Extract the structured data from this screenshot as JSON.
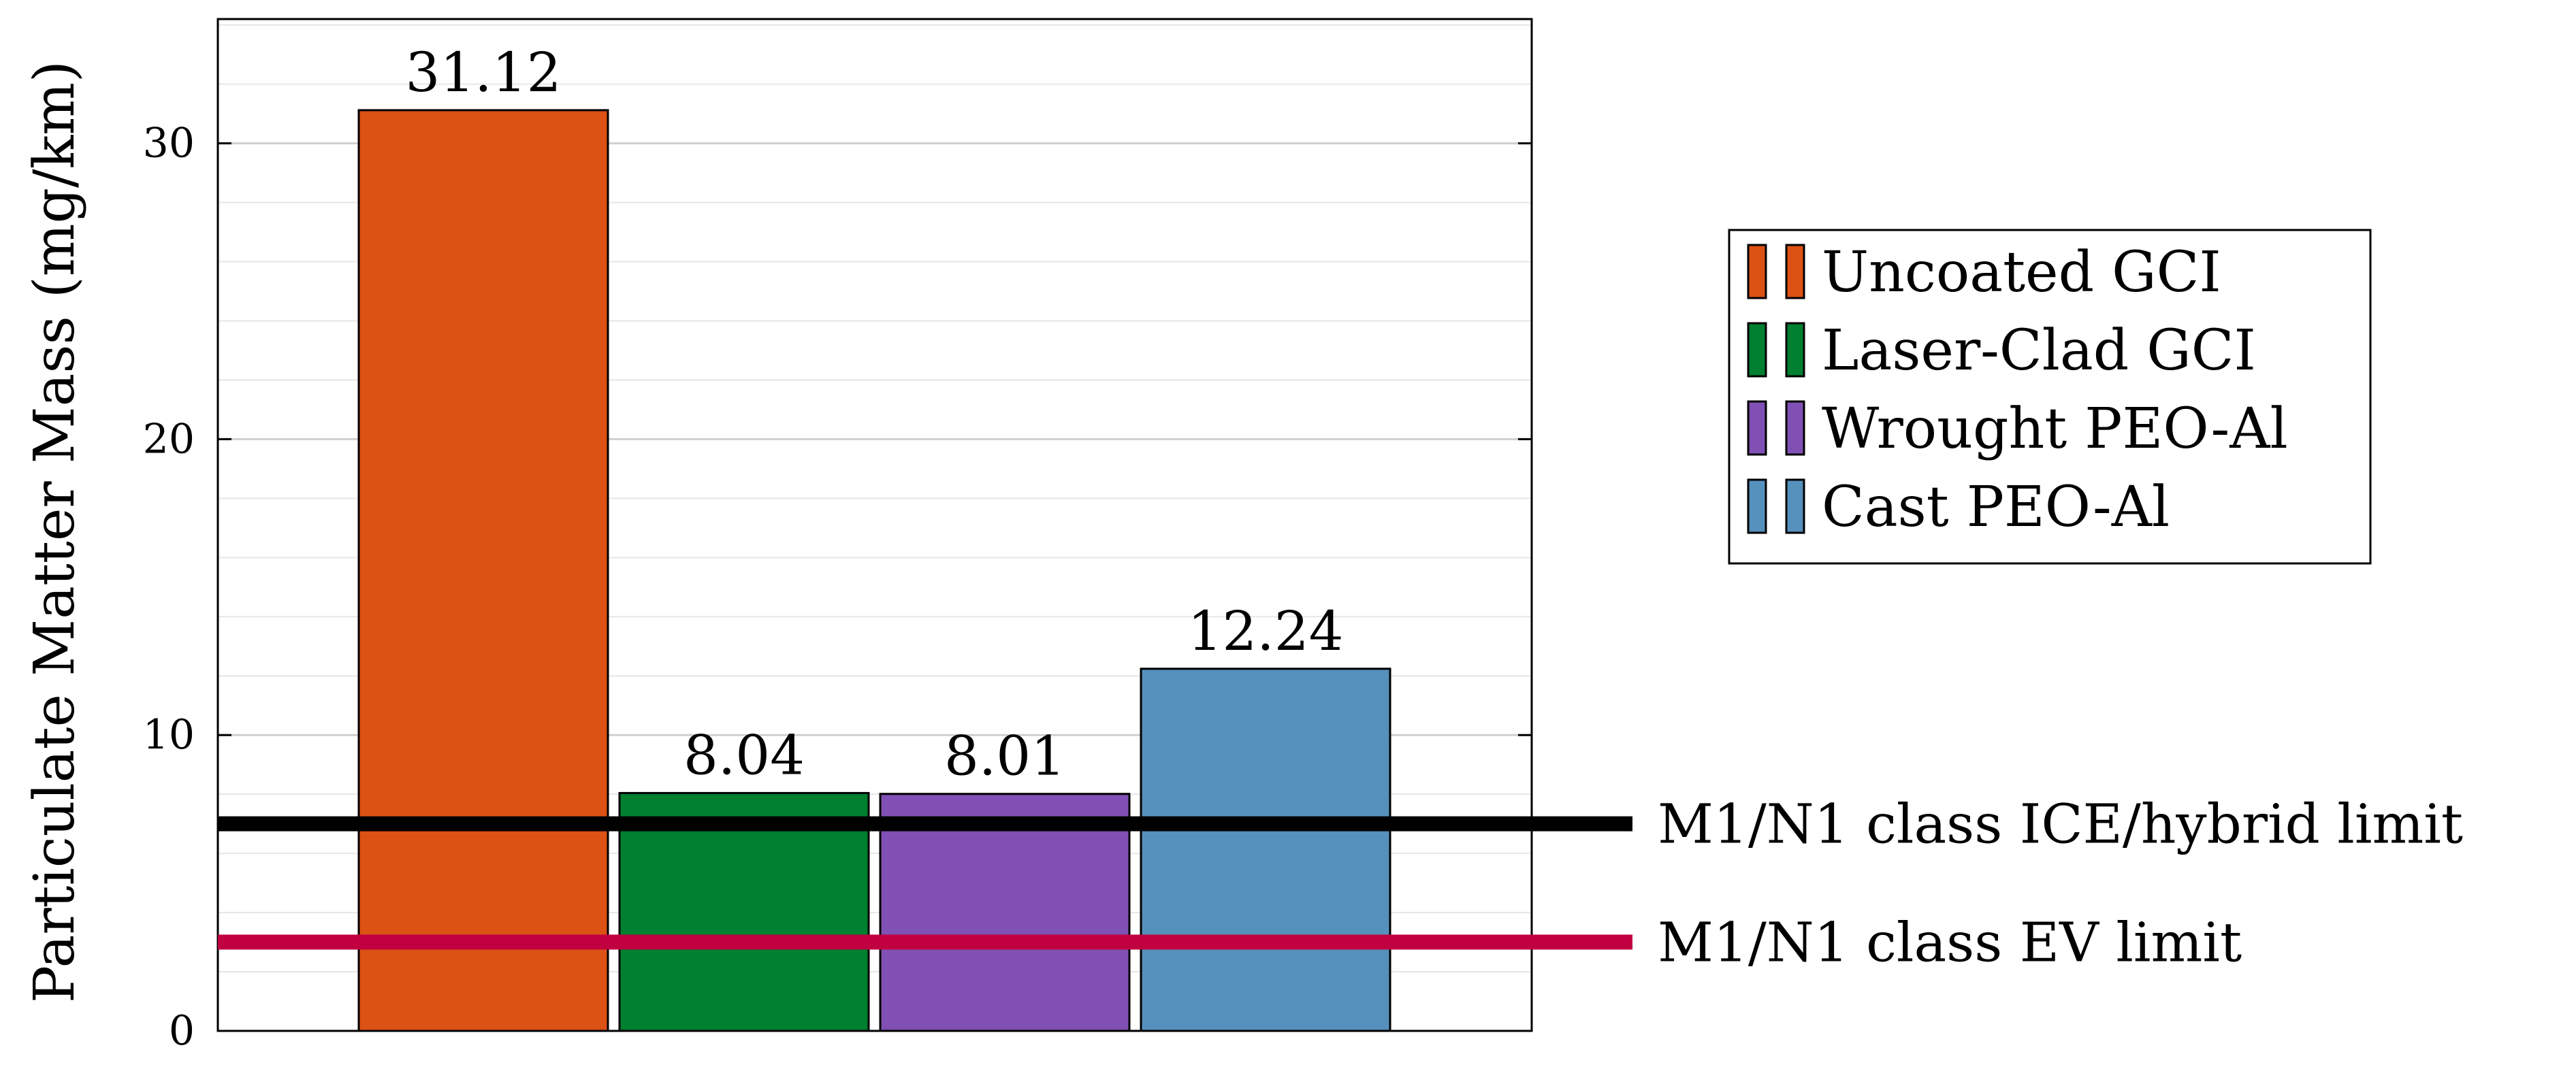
{
  "chart_data": {
    "type": "bar",
    "title": "",
    "xlabel": "",
    "ylabel": "Particulate Matter Mass (mg/km)",
    "ylim": [
      0,
      34.2
    ],
    "yticks": [
      0,
      10,
      20,
      30
    ],
    "grid": "horizontal minor and major",
    "legend_position": "right",
    "series": [
      {
        "name": "Uncoated GCI",
        "value": 31.12,
        "label": "31.12",
        "color": "#dc5114"
      },
      {
        "name": "Laser-Clad GCI",
        "value": 8.04,
        "label": "8.04",
        "color": "#008030"
      },
      {
        "name": "Wrought PEO-Al",
        "value": 8.01,
        "label": "8.01",
        "color": "#8050b4"
      },
      {
        "name": "Cast PEO-Al",
        "value": 12.24,
        "label": "12.24",
        "color": "#5690bc"
      }
    ],
    "reference_lines": [
      {
        "label": "M1/N1 class ICE/hybrid limit",
        "value": 7,
        "color": "#000000"
      },
      {
        "label": "M1/N1 class EV limit",
        "value": 3,
        "color": "#c00040"
      }
    ]
  }
}
